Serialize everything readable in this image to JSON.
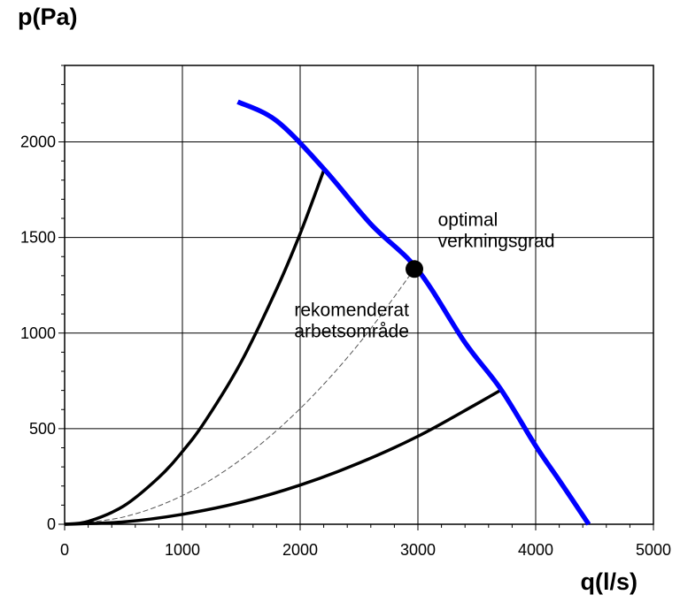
{
  "chart_data": {
    "type": "line",
    "title": "",
    "xlabel": "q(l/s)",
    "ylabel": "p(Pa)",
    "xlim": [
      0,
      5000
    ],
    "ylim": [
      0,
      2400
    ],
    "grid": true,
    "x_ticks": [
      0,
      1000,
      2000,
      3000,
      4000,
      5000
    ],
    "y_ticks": [
      0,
      500,
      1000,
      1500,
      2000
    ],
    "x_tick_labels": [
      "0",
      "1000",
      "2000",
      "3000",
      "4000",
      "5000"
    ],
    "y_tick_labels": [
      "0",
      "500",
      "1000",
      "1500",
      "2000"
    ],
    "colors": {
      "fan_curve": "#0000ff",
      "system_curves": "#000000",
      "optimal_curve": "#555555",
      "grid": "#000000"
    },
    "series": [
      {
        "name": "fan-curve",
        "style": "solid-thick-blue",
        "x": [
          1470,
          1800,
          2200,
          2600,
          3000,
          3400,
          3700,
          4000,
          4200,
          4450
        ],
        "y": [
          2210,
          2110,
          1860,
          1570,
          1330,
          950,
          710,
          410,
          230,
          0
        ]
      },
      {
        "name": "system-curve-upper",
        "style": "solid-black",
        "x": [
          0,
          200,
          500,
          800,
          1000,
          1200,
          1500,
          1800,
          2000,
          2200
        ],
        "y": [
          0,
          15,
          95,
          245,
          380,
          545,
          850,
          1230,
          1520,
          1850
        ]
      },
      {
        "name": "system-curve-optimal",
        "style": "dashed-gray",
        "x": [
          0,
          500,
          1000,
          1500,
          2000,
          2500,
          2970
        ],
        "y": [
          0,
          38,
          150,
          340,
          605,
          945,
          1335
        ]
      },
      {
        "name": "system-curve-lower",
        "style": "solid-black",
        "x": [
          0,
          500,
          1000,
          1500,
          2000,
          2500,
          3000,
          3500,
          3700
        ],
        "y": [
          0,
          12,
          52,
          115,
          205,
          320,
          460,
          630,
          700
        ]
      }
    ],
    "points": [
      {
        "name": "optimal-point",
        "x": 2970,
        "y": 1335
      }
    ],
    "annotations": [
      {
        "name": "optimal-label",
        "lines": [
          "optimal",
          "verkningsgrad"
        ],
        "x": 3170,
        "y": 1560
      },
      {
        "name": "range-label",
        "lines": [
          "rekomenderat",
          "arbetsområde"
        ],
        "x": 1950,
        "y": 1090
      }
    ]
  }
}
